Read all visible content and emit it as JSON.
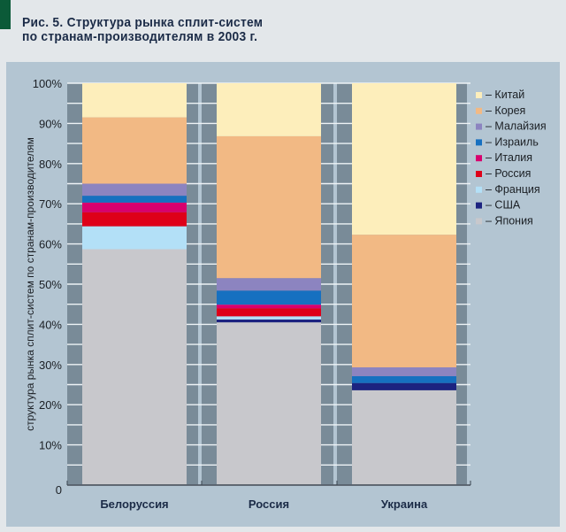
{
  "title_lines": [
    "Рис. 5. Структура рынка сплит-систем",
    "по странам-производителям в 2003 г."
  ],
  "chart_data": {
    "type": "bar",
    "stacked": true,
    "title": "Рис. 5. Структура рынка сплит-систем по странам-производителям в 2003 г.",
    "xlabel": "",
    "ylabel": "структура рынка сплит-систем по странам-производителям",
    "ylim": [
      0,
      100
    ],
    "yticks": [
      "0",
      "10%",
      "20%",
      "30%",
      "40%",
      "50%",
      "60%",
      "70%",
      "80%",
      "90%",
      "100%"
    ],
    "ytick_values": [
      0,
      10,
      20,
      30,
      40,
      50,
      60,
      70,
      80,
      90,
      100
    ],
    "categories": [
      "Белоруссия",
      "Россия",
      "Украина"
    ],
    "legend_position": "right",
    "series": [
      {
        "name": "– Япония",
        "color": "#c8c8cc",
        "values": [
          58.7,
          40.5,
          23.6
        ]
      },
      {
        "name": "– США",
        "color": "#1c2380",
        "values": [
          0,
          0.7,
          1.8
        ]
      },
      {
        "name": "– Франция",
        "color": "#b3e0f7",
        "values": [
          5.7,
          0.8,
          0
        ]
      },
      {
        "name": "– Россия",
        "color": "#de0019",
        "values": [
          3.5,
          2.0,
          0
        ]
      },
      {
        "name": "– Италия",
        "color": "#d8006e",
        "values": [
          2.4,
          0.9,
          0
        ]
      },
      {
        "name": "– Израиль",
        "color": "#1670c0",
        "values": [
          1.7,
          3.5,
          1.7
        ]
      },
      {
        "name": "– Малайзия",
        "color": "#8c84c0",
        "values": [
          3.0,
          3.1,
          2.2
        ]
      },
      {
        "name": "– Корея",
        "color": "#f2b984",
        "values": [
          16.5,
          35.3,
          33.0
        ]
      },
      {
        "name": "– Китай",
        "color": "#fdeebb",
        "values": [
          8.5,
          13.2,
          37.7
        ]
      }
    ]
  }
}
